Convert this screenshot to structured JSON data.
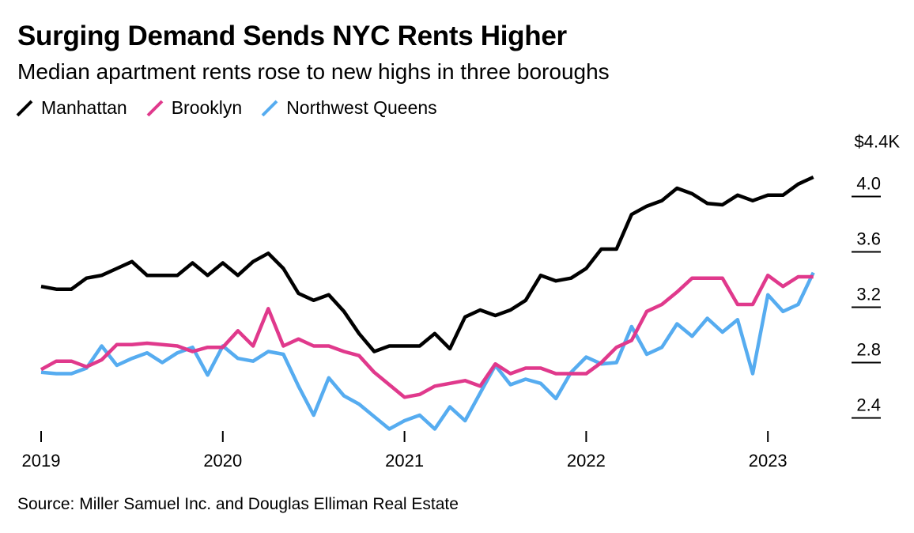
{
  "chart_data": {
    "type": "line",
    "title": "Surging Demand Sends NYC Rents Higher",
    "subtitle": "Median apartment rents rose to new highs in three boroughs",
    "source": "Source: Miller Samuel Inc. and Douglas Elliman Real Estate",
    "x_start": "2019-01",
    "x_tick_labels": [
      "2019",
      "2020",
      "2021",
      "2022",
      "2023"
    ],
    "y_tick_values": [
      2.4,
      2.8,
      3.2,
      3.6,
      4.0,
      4.4
    ],
    "y_tick_labels": [
      "2.4",
      "2.8",
      "3.2",
      "3.6",
      "4.0",
      "$4.4K"
    ],
    "ylim": [
      2.3,
      4.4
    ],
    "xlabel": "",
    "ylabel": "",
    "series": [
      {
        "name": "Manhattan",
        "color": "#000000",
        "values": [
          3.35,
          3.33,
          3.33,
          3.41,
          3.43,
          3.48,
          3.53,
          3.43,
          3.43,
          3.43,
          3.52,
          3.43,
          3.52,
          3.43,
          3.53,
          3.59,
          3.48,
          3.3,
          3.25,
          3.29,
          3.17,
          3.01,
          2.88,
          2.92,
          2.92,
          2.92,
          3.01,
          2.9,
          3.13,
          3.18,
          3.14,
          3.18,
          3.25,
          3.43,
          3.39,
          3.41,
          3.48,
          3.62,
          3.62,
          3.87,
          3.93,
          3.97,
          4.06,
          4.02,
          3.95,
          3.94,
          4.01,
          3.97,
          4.01,
          4.01,
          4.09,
          4.14
        ]
      },
      {
        "name": "Brooklyn",
        "color": "#e0398c",
        "values": [
          2.75,
          2.81,
          2.81,
          2.77,
          2.82,
          2.93,
          2.93,
          2.94,
          2.93,
          2.92,
          2.88,
          2.91,
          2.91,
          3.03,
          2.92,
          3.19,
          2.92,
          2.97,
          2.92,
          2.92,
          2.88,
          2.85,
          2.73,
          2.64,
          2.55,
          2.57,
          2.63,
          2.65,
          2.67,
          2.63,
          2.79,
          2.72,
          2.76,
          2.76,
          2.72,
          2.72,
          2.72,
          2.8,
          2.91,
          2.96,
          3.17,
          3.22,
          3.31,
          3.41,
          3.41,
          3.41,
          3.22,
          3.22,
          3.43,
          3.35,
          3.42,
          3.42
        ]
      },
      {
        "name": "Northwest Queens",
        "color": "#56acf0",
        "values": [
          2.73,
          2.72,
          2.72,
          2.76,
          2.92,
          2.78,
          2.83,
          2.87,
          2.8,
          2.87,
          2.91,
          2.71,
          2.92,
          2.83,
          2.81,
          2.88,
          2.86,
          2.63,
          2.42,
          2.69,
          2.56,
          2.5,
          2.41,
          2.32,
          2.38,
          2.42,
          2.32,
          2.48,
          2.38,
          2.58,
          2.78,
          2.64,
          2.68,
          2.65,
          2.54,
          2.73,
          2.84,
          2.79,
          2.8,
          3.06,
          2.86,
          2.91,
          3.08,
          2.99,
          3.12,
          3.02,
          3.11,
          2.72,
          3.29,
          3.17,
          3.22,
          3.45
        ]
      }
    ]
  }
}
